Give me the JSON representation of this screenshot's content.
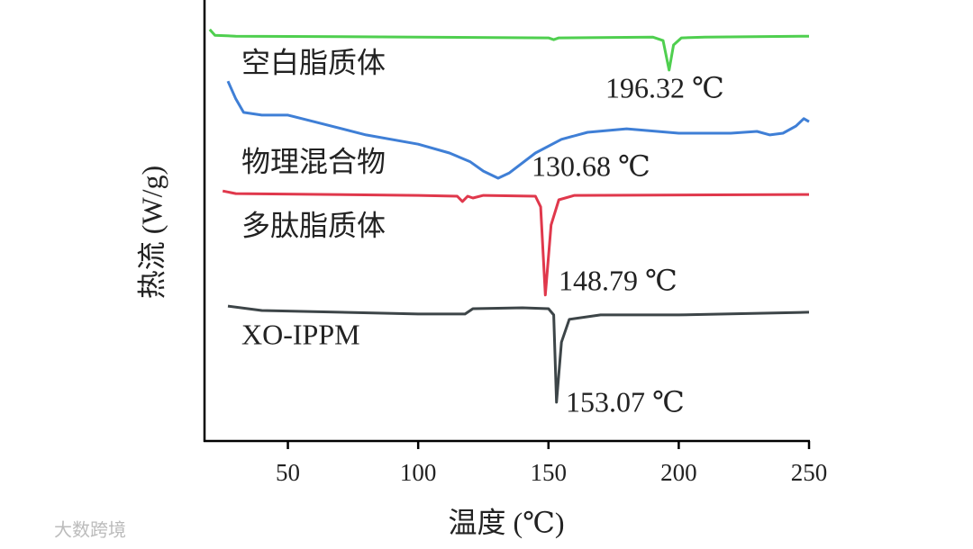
{
  "chart_data": {
    "type": "line",
    "x_label": "温度 (℃)",
    "y_label": "热流 (W/g)",
    "xlim": [
      18,
      250
    ],
    "xticks": [
      50,
      100,
      150,
      200,
      250
    ],
    "ylim": [
      0,
      100
    ],
    "series": [
      {
        "name": "空白脂质体",
        "color": "#4fcf4f",
        "x": [
          20,
          22,
          30,
          100,
          150,
          152,
          154,
          190,
          194,
          196.32,
          198,
          201,
          210,
          250
        ],
        "values": [
          93.3,
          92.0,
          91.8,
          91.6,
          91.4,
          91.0,
          91.4,
          91.6,
          90.8,
          84.1,
          89.8,
          91.4,
          91.6,
          91.8
        ]
      },
      {
        "name": "物理混合物",
        "color": "#3f7fd6",
        "x": [
          27,
          30,
          33,
          40,
          50,
          60,
          80,
          100,
          112,
          120,
          125,
          130.68,
          135,
          145,
          155,
          165,
          180,
          200,
          220,
          230,
          235,
          240,
          245,
          248,
          250
        ],
        "values": [
          81.6,
          77.6,
          74.5,
          73.9,
          73.9,
          72.4,
          69.4,
          67.3,
          65.3,
          63.3,
          61.2,
          59.6,
          60.8,
          65.3,
          68.4,
          70.0,
          70.8,
          69.8,
          69.8,
          70.2,
          69.4,
          69.8,
          71.4,
          73.1,
          72.4
        ]
      },
      {
        "name": "多肽脂质体",
        "color": "#e0384c",
        "x": [
          25,
          30,
          100,
          115,
          117,
          119,
          121,
          125,
          145,
          147,
          148.79,
          151,
          154,
          160,
          250
        ],
        "values": [
          56.7,
          56.1,
          55.7,
          55.5,
          54.3,
          55.5,
          55.1,
          55.7,
          55.5,
          53.1,
          33.1,
          49.0,
          54.7,
          55.7,
          55.9
        ]
      },
      {
        "name": "XO-IPPM",
        "color": "#3d4548",
        "x": [
          27,
          40,
          100,
          118,
          121,
          140,
          150,
          152,
          153.07,
          155,
          158,
          170,
          200,
          250
        ],
        "values": [
          30.6,
          29.6,
          28.8,
          28.8,
          30.0,
          30.2,
          30.0,
          28.6,
          8.8,
          22.4,
          27.6,
          28.6,
          28.6,
          29.2
        ]
      }
    ],
    "annotations": [
      "196.32 ℃",
      "130.68 ℃",
      "148.79 ℃",
      "153.07 ℃"
    ],
    "watermark": "大数跨境"
  }
}
